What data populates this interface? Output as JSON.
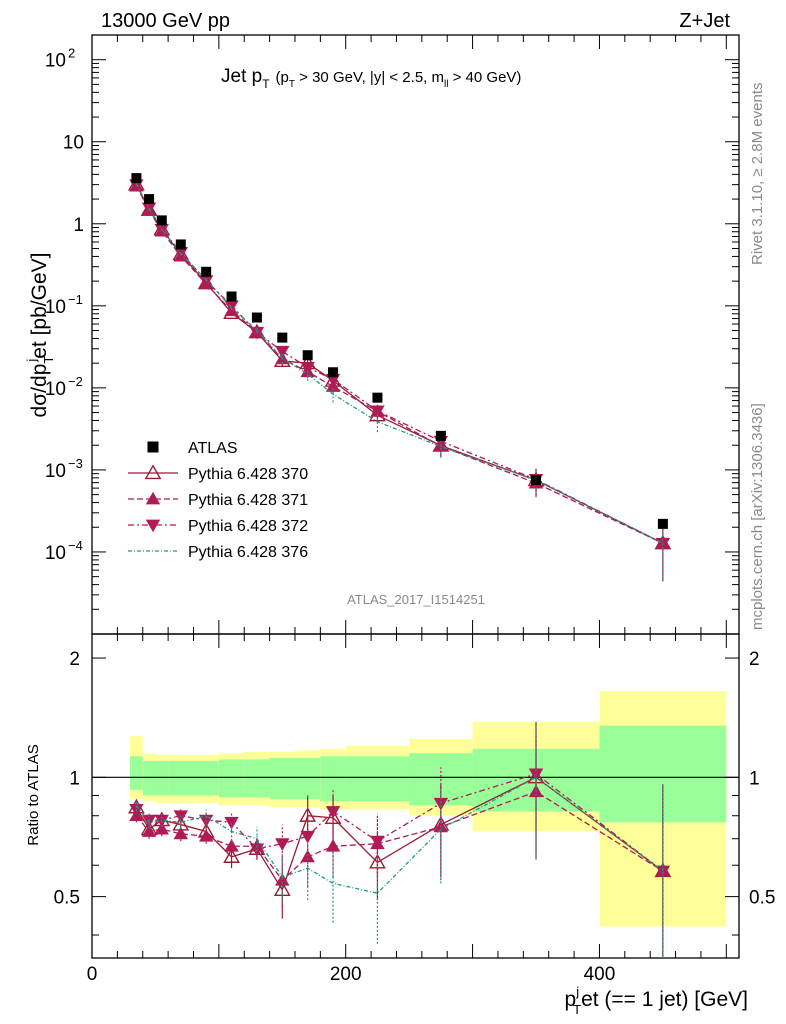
{
  "header": {
    "left": "13000 GeV pp",
    "right": "Z+Jet"
  },
  "plot_title": {
    "main": "Jet p",
    "main_sub": "T",
    "cut_open": "(p",
    "cut_sub": "T",
    "cut_rest": " > 30 GeV, |y| < 2.5, m",
    "cut_sub2": "ll",
    "cut_end": " > 40 GeV)"
  },
  "side_text": {
    "rivet": "Rivet 3.1.10, ≥ 2.8M events",
    "mcplots": "mcplots.cern.ch [arXiv:1306.3436]"
  },
  "watermark": "ATLAS_2017_I1514251",
  "axis": {
    "ylabel_main": "dσ/dp",
    "ylabel_sub": "T",
    "ylabel_sup": "j",
    "ylabel_rest": "et [pb/GeV]",
    "ylabel_ratio": "Ratio to ATLAS",
    "xlabel_main": "p",
    "xlabel_sup": "j",
    "xlabel_sub": "T",
    "xlabel_rest": "et (== 1 jet) [GeV]"
  },
  "ticks": {
    "x": [
      "0",
      "200",
      "400"
    ],
    "y_main": [
      {
        "base": "10",
        "exp": "2",
        "v": 100
      },
      {
        "base": "10",
        "exp": "",
        "v": 10
      },
      {
        "base": "1",
        "exp": "",
        "v": 1
      },
      {
        "base": "10",
        "exp": "−1",
        "v": 0.1
      },
      {
        "base": "10",
        "exp": "−2",
        "v": 0.01
      },
      {
        "base": "10",
        "exp": "−3",
        "v": 0.001
      },
      {
        "base": "10",
        "exp": "−4",
        "v": 0.0001
      }
    ],
    "y_ratio": [
      "0.5",
      "1",
      "2"
    ]
  },
  "legend": [
    {
      "label": "ATLAS",
      "color": "#000000",
      "marker": "square"
    },
    {
      "label": "Pythia 6.428 370",
      "color": "#9b1b30",
      "marker": "open-triangle-up",
      "dash": ""
    },
    {
      "label": "Pythia 6.428 371",
      "color": "#b01a55",
      "marker": "triangle-up",
      "dash": "6,3"
    },
    {
      "label": "Pythia 6.428 372",
      "color": "#b01a55",
      "marker": "triangle-down",
      "dash": "6,3,2,3"
    },
    {
      "label": "Pythia 6.428 376",
      "color": "#1a9a8c",
      "marker": "none",
      "dash": "4,2,1,2"
    }
  ],
  "chart_data": {
    "type": "scatter",
    "x_scale": "linear",
    "y_scale": "log",
    "xlim": [
      0,
      510
    ],
    "ylim_main": [
      1e-05,
      200
    ],
    "ylim_ratio": [
      0.35,
      2.3
    ],
    "bins": [
      [
        30,
        40
      ],
      [
        40,
        50
      ],
      [
        50,
        60
      ],
      [
        60,
        80
      ],
      [
        80,
        100
      ],
      [
        100,
        120
      ],
      [
        120,
        140
      ],
      [
        140,
        160
      ],
      [
        160,
        180
      ],
      [
        180,
        200
      ],
      [
        200,
        250
      ],
      [
        250,
        300
      ],
      [
        300,
        400
      ],
      [
        400,
        500
      ]
    ],
    "x": [
      35,
      45,
      55,
      70,
      90,
      110,
      130,
      150,
      170,
      190,
      225,
      275,
      350,
      450
    ],
    "atlas": [
      3.6,
      2.0,
      1.1,
      0.56,
      0.26,
      0.13,
      0.072,
      0.041,
      0.025,
      0.0155,
      0.0076,
      0.0026,
      0.00075,
      0.00022
    ],
    "uncertainty_band_green": [
      [
        0.93,
        1.13
      ],
      [
        0.9,
        1.1
      ],
      [
        0.9,
        1.1
      ],
      [
        0.9,
        1.1
      ],
      [
        0.9,
        1.1
      ],
      [
        0.89,
        1.11
      ],
      [
        0.89,
        1.11
      ],
      [
        0.88,
        1.12
      ],
      [
        0.88,
        1.12
      ],
      [
        0.87,
        1.13
      ],
      [
        0.87,
        1.13
      ],
      [
        0.85,
        1.15
      ],
      [
        0.82,
        1.18
      ],
      [
        0.77,
        1.35
      ]
    ],
    "uncertainty_band_yellow": [
      [
        0.88,
        1.27
      ],
      [
        0.87,
        1.15
      ],
      [
        0.86,
        1.14
      ],
      [
        0.86,
        1.14
      ],
      [
        0.86,
        1.14
      ],
      [
        0.85,
        1.15
      ],
      [
        0.85,
        1.16
      ],
      [
        0.84,
        1.16
      ],
      [
        0.84,
        1.17
      ],
      [
        0.83,
        1.18
      ],
      [
        0.83,
        1.2
      ],
      [
        0.8,
        1.25
      ],
      [
        0.73,
        1.38
      ],
      [
        0.42,
        1.65
      ]
    ],
    "series": [
      {
        "name": "Pythia 6.428 370",
        "ratio": [
          0.84,
          0.74,
          0.78,
          0.76,
          0.73,
          0.63,
          0.66,
          0.52,
          0.8,
          0.79,
          0.61,
          0.76,
          1.0,
          0.58
        ],
        "ratio_err": [
          0.03,
          0.03,
          0.03,
          0.03,
          0.03,
          0.04,
          0.04,
          0.08,
          0.1,
          0.11,
          0.12,
          0.2,
          0.38,
          0.38
        ]
      },
      {
        "name": "Pythia 6.428 371",
        "ratio": [
          0.8,
          0.73,
          0.74,
          0.72,
          0.71,
          0.67,
          0.67,
          0.55,
          0.63,
          0.67,
          0.68,
          0.75,
          0.92,
          0.58
        ],
        "ratio_err": [
          0.03,
          0.03,
          0.03,
          0.03,
          0.03,
          0.04,
          0.04,
          0.08,
          0.1,
          0.11,
          0.12,
          0.2,
          0.27,
          0.38
        ]
      },
      {
        "name": "Pythia 6.428 372",
        "ratio": [
          0.83,
          0.78,
          0.78,
          0.8,
          0.78,
          0.77,
          0.66,
          0.68,
          0.71,
          0.82,
          0.69,
          0.86,
          1.02,
          0.58
        ],
        "ratio_err": [
          0.03,
          0.03,
          0.03,
          0.03,
          0.03,
          0.04,
          0.04,
          0.08,
          0.1,
          0.11,
          0.12,
          0.2,
          0.25,
          0.38
        ]
      },
      {
        "name": "Pythia 6.428 376",
        "ratio": [
          0.85,
          0.77,
          0.78,
          0.77,
          0.8,
          0.73,
          0.7,
          0.56,
          0.59,
          0.54,
          0.51,
          0.74,
          1.0,
          0.58
        ],
        "ratio_err": [
          0.03,
          0.03,
          0.03,
          0.03,
          0.03,
          0.04,
          0.05,
          0.08,
          0.1,
          0.11,
          0.13,
          0.2,
          0.38,
          0.38
        ]
      }
    ]
  }
}
